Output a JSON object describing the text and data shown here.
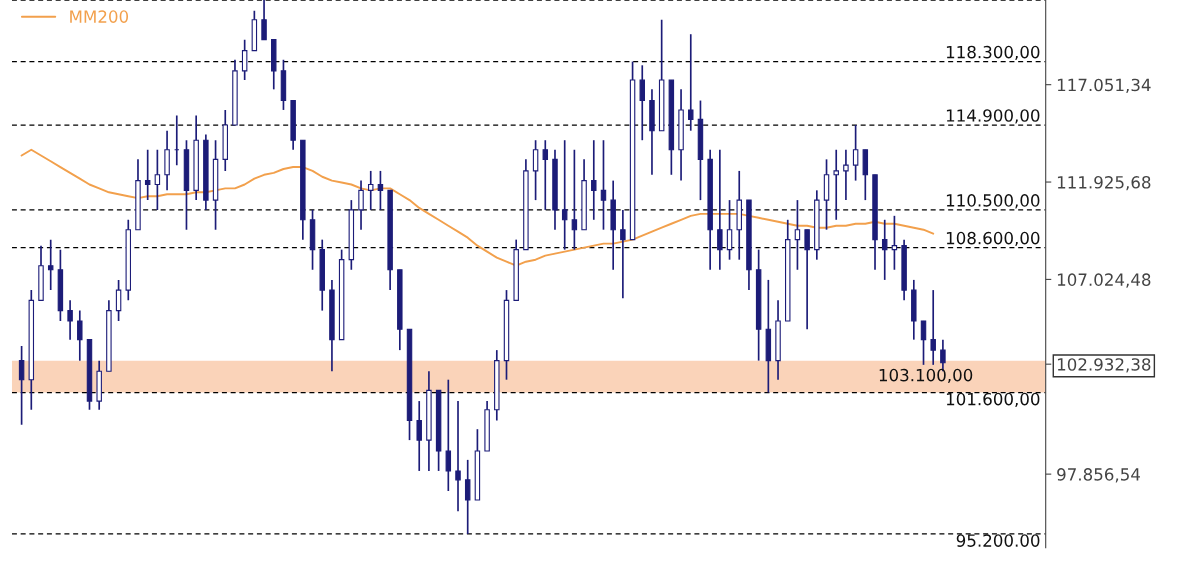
{
  "chart_data": {
    "type": "candlestick",
    "log": true,
    "categories": [
      null,
      null,
      null,
      null,
      null,
      null,
      null,
      null,
      null,
      null,
      null,
      null,
      null,
      null,
      null,
      null,
      null,
      null,
      null,
      null,
      null,
      null,
      null,
      null,
      null,
      null,
      null,
      null,
      null,
      null,
      null,
      null,
      null,
      null,
      null,
      null,
      null,
      null,
      null,
      null,
      null,
      null,
      null,
      null,
      null,
      null,
      null,
      null,
      null,
      null,
      null,
      null,
      null,
      null,
      null,
      null,
      null,
      null,
      null,
      null,
      null,
      null,
      null,
      null,
      null,
      null,
      null,
      null,
      null,
      null,
      null,
      null,
      null,
      null,
      null,
      null,
      null,
      null,
      null,
      null,
      null,
      null,
      null,
      null,
      null,
      null,
      null,
      null,
      null,
      null,
      null,
      null,
      null,
      null,
      null,
      null
    ],
    "ohlc": [
      [
        103100,
        103800,
        100100,
        102200
      ],
      [
        102200,
        106500,
        100800,
        106000
      ],
      [
        106000,
        108700,
        106000,
        107700
      ],
      [
        107700,
        109000,
        106500,
        107500
      ],
      [
        107500,
        108500,
        105000,
        105500
      ],
      [
        105500,
        106000,
        104100,
        105000
      ],
      [
        105000,
        105500,
        103100,
        104100
      ],
      [
        104100,
        104100,
        100800,
        101200
      ],
      [
        101200,
        103100,
        100800,
        102600
      ],
      [
        102600,
        106000,
        102600,
        105500
      ],
      [
        105500,
        107000,
        105000,
        106500
      ],
      [
        106500,
        110000,
        106000,
        109500
      ],
      [
        109500,
        113100,
        109500,
        112000
      ],
      [
        112000,
        113600,
        111000,
        111800
      ],
      [
        111800,
        113600,
        110500,
        112300
      ],
      [
        112300,
        114600,
        111500,
        113600
      ],
      [
        113600,
        115400,
        112800,
        113600
      ],
      [
        113600,
        114100,
        109500,
        111500
      ],
      [
        111500,
        115400,
        111000,
        114100
      ],
      [
        114100,
        114400,
        110500,
        111000
      ],
      [
        111000,
        114100,
        109500,
        113100
      ],
      [
        113100,
        115700,
        112500,
        114900
      ],
      [
        114900,
        118400,
        114900,
        117800
      ],
      [
        117800,
        119500,
        117300,
        118900
      ],
      [
        118900,
        121100,
        118900,
        120600
      ],
      [
        120600,
        121700,
        119500,
        119500
      ],
      [
        119500,
        119500,
        116800,
        117800
      ],
      [
        117800,
        118400,
        115700,
        116200
      ],
      [
        116200,
        116200,
        113600,
        114100
      ],
      [
        114100,
        114100,
        109000,
        110000
      ],
      [
        110000,
        110500,
        107500,
        108500
      ],
      [
        108500,
        109000,
        105500,
        106500
      ],
      [
        106500,
        107000,
        102600,
        104100
      ],
      [
        104100,
        108500,
        104100,
        108000
      ],
      [
        108000,
        111000,
        107500,
        110500
      ],
      [
        110500,
        112000,
        109500,
        111500
      ],
      [
        111500,
        112500,
        110500,
        111800
      ],
      [
        111800,
        112500,
        110500,
        111500
      ],
      [
        111500,
        111500,
        106500,
        107500
      ],
      [
        107500,
        107500,
        103600,
        104600
      ],
      [
        104600,
        104600,
        99400,
        100300
      ],
      [
        100300,
        101200,
        98000,
        99400
      ],
      [
        99400,
        102600,
        98000,
        101700
      ],
      [
        101700,
        101700,
        98000,
        98900
      ],
      [
        98900,
        102200,
        97100,
        98000
      ],
      [
        98000,
        101200,
        96200,
        97600
      ],
      [
        97600,
        98500,
        95200,
        96700
      ],
      [
        96700,
        99900,
        96700,
        98900
      ],
      [
        98900,
        101200,
        98900,
        100800
      ],
      [
        100800,
        103600,
        100300,
        103100
      ],
      [
        103100,
        106500,
        102200,
        106000
      ],
      [
        106000,
        109000,
        106000,
        108500
      ],
      [
        108500,
        113100,
        108500,
        112500
      ],
      [
        112500,
        114100,
        111000,
        113600
      ],
      [
        113600,
        114100,
        110500,
        113100
      ],
      [
        113100,
        113600,
        109500,
        110500
      ],
      [
        110500,
        114100,
        108500,
        110000
      ],
      [
        110000,
        113600,
        108500,
        109500
      ],
      [
        109500,
        113100,
        109500,
        112000
      ],
      [
        112000,
        114100,
        110000,
        111500
      ],
      [
        111500,
        114100,
        109500,
        111000
      ],
      [
        111000,
        112000,
        107500,
        109500
      ],
      [
        109500,
        110500,
        106100,
        109000
      ],
      [
        109000,
        118300,
        109000,
        117300
      ],
      [
        117300,
        118100,
        114100,
        116200
      ],
      [
        116200,
        116800,
        112300,
        114600
      ],
      [
        114600,
        120600,
        114600,
        117300
      ],
      [
        117300,
        117300,
        112300,
        113600
      ],
      [
        113600,
        116800,
        112000,
        115700
      ],
      [
        115700,
        119800,
        114600,
        115200
      ],
      [
        115200,
        116200,
        111000,
        113100
      ],
      [
        113100,
        113600,
        107500,
        109500
      ],
      [
        109500,
        113600,
        107500,
        108500
      ],
      [
        108500,
        111000,
        108000,
        109500
      ],
      [
        109500,
        112500,
        108000,
        111000
      ],
      [
        111000,
        111000,
        106500,
        107500
      ],
      [
        107500,
        108500,
        103100,
        104600
      ],
      [
        104600,
        107000,
        101600,
        103100
      ],
      [
        103100,
        106000,
        102200,
        105000
      ],
      [
        105000,
        110000,
        105000,
        109000
      ],
      [
        109000,
        111000,
        107500,
        109500
      ],
      [
        109500,
        109500,
        104600,
        108500
      ],
      [
        108500,
        111500,
        108000,
        111000
      ],
      [
        111000,
        113100,
        109500,
        112300
      ],
      [
        112300,
        113600,
        110000,
        112500
      ],
      [
        112500,
        113600,
        111000,
        112800
      ],
      [
        112800,
        114900,
        112000,
        113600
      ],
      [
        113600,
        113600,
        111000,
        112300
      ],
      [
        112300,
        112300,
        107500,
        109000
      ],
      [
        109000,
        110000,
        107000,
        108500
      ],
      [
        108500,
        110200,
        107500,
        108700
      ],
      [
        108700,
        109000,
        106000,
        106500
      ],
      [
        106500,
        107000,
        104100,
        105000
      ],
      [
        105000,
        105000,
        102900,
        104100
      ],
      [
        104100,
        106500,
        102900,
        103600
      ],
      [
        103600,
        104100,
        102600,
        103000
      ]
    ],
    "color": "#1c1c78",
    "series": [
      {
        "name": "MM200",
        "type": "line",
        "color": "#f2a04c",
        "values": [
          113300,
          113600,
          113300,
          113000,
          112700,
          112400,
          112100,
          111800,
          111600,
          111400,
          111300,
          111200,
          111100,
          111200,
          111200,
          111300,
          111300,
          111300,
          111400,
          111400,
          111500,
          111600,
          111600,
          111800,
          112100,
          112300,
          112400,
          112600,
          112700,
          112700,
          112500,
          112200,
          112000,
          111900,
          111800,
          111600,
          111500,
          111600,
          111600,
          111300,
          111000,
          110600,
          110300,
          110000,
          109700,
          109400,
          109100,
          108700,
          108400,
          108100,
          107900,
          107700,
          107900,
          108000,
          108200,
          108300,
          108400,
          108500,
          108600,
          108700,
          108800,
          108800,
          108900,
          109000,
          109200,
          109400,
          109600,
          109800,
          110000,
          110200,
          110300,
          110300,
          110300,
          110300,
          110300,
          110200,
          110100,
          110000,
          109900,
          109800,
          109700,
          109700,
          109600,
          109600,
          109700,
          109700,
          109800,
          109800,
          109900,
          109800,
          109800,
          109700,
          109600,
          109500,
          109300,
          null
        ]
      }
    ],
    "ylim": [
      94600,
      121700
    ],
    "yticks": [
      {
        "value": 117051.34,
        "label": "117.051,34"
      },
      {
        "value": 111925.68,
        "label": "111.925,68"
      },
      {
        "value": 107024.48,
        "label": "107.024,48"
      },
      {
        "value": 102932.38,
        "label": "102.932,38"
      },
      {
        "value": 97856.54,
        "label": "97.856,54"
      }
    ],
    "tick_labels": "y",
    "grid": false,
    "legend": "top left",
    "ref_lines": [
      {
        "axis": "y",
        "value": 121700,
        "line_style": "dashed",
        "color": "#000000"
      },
      {
        "axis": "y",
        "value": 118300,
        "label": "118.300,00",
        "line_style": "dashed",
        "color": "#000000"
      },
      {
        "axis": "y",
        "value": 114900,
        "label": "114.900,00",
        "line_style": "dashed",
        "color": "#000000"
      },
      {
        "axis": "y",
        "value": 110500,
        "label": "110.500,00",
        "line_style": "dashed",
        "color": "#000000"
      },
      {
        "axis": "y",
        "value": 108600,
        "label": "108.600,00",
        "line_style": "dashed",
        "color": "#000000"
      },
      {
        "axis": "y",
        "value": 101600,
        "label": "101.600,00",
        "line_style": "dashed",
        "color": "#000000"
      },
      {
        "axis": "y",
        "value": 95200,
        "label": "95.200.00",
        "line_style": "dashed",
        "color": "#000000"
      }
    ],
    "bands": [
      {
        "axis": "y",
        "from": 101600,
        "to": 103100,
        "label": "103.100,00",
        "color": "#f9c8a8"
      }
    ]
  }
}
